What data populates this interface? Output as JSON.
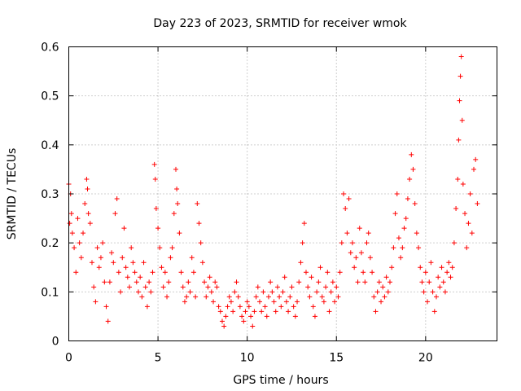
{
  "chart_data": {
    "type": "scatter",
    "title": "Day 223 of 2023, SRMTID for receiver wmok",
    "xlabel": "GPS time / hours",
    "ylabel": "SRMTID / TECUs",
    "xlim": [
      0,
      24
    ],
    "ylim": [
      0,
      0.6
    ],
    "xticks": [
      0,
      5,
      10,
      15,
      20
    ],
    "xtick_labels": [
      "0",
      "5",
      "10",
      "15",
      "20"
    ],
    "yticks": [
      0,
      0.1,
      0.2,
      0.3,
      0.4,
      0.5,
      0.6
    ],
    "ytick_labels": [
      "0",
      "0.1",
      "0.2",
      "0.3",
      "0.4",
      "0.5",
      "0.6"
    ],
    "grid": true,
    "marker": "+",
    "color": "#ff0000",
    "series": [
      {
        "name": "SRMTID",
        "points": [
          [
            0.0,
            0.32
          ],
          [
            0.05,
            0.24
          ],
          [
            0.1,
            0.3
          ],
          [
            0.15,
            0.26
          ],
          [
            0.2,
            0.22
          ],
          [
            0.3,
            0.19
          ],
          [
            0.4,
            0.14
          ],
          [
            0.5,
            0.25
          ],
          [
            0.6,
            0.2
          ],
          [
            0.7,
            0.17
          ],
          [
            0.8,
            0.22
          ],
          [
            0.9,
            0.28
          ],
          [
            1.0,
            0.33
          ],
          [
            1.05,
            0.31
          ],
          [
            1.1,
            0.26
          ],
          [
            1.2,
            0.24
          ],
          [
            1.3,
            0.16
          ],
          [
            1.4,
            0.11
          ],
          [
            1.5,
            0.08
          ],
          [
            1.6,
            0.19
          ],
          [
            1.7,
            0.15
          ],
          [
            1.8,
            0.17
          ],
          [
            1.9,
            0.2
          ],
          [
            2.0,
            0.12
          ],
          [
            2.1,
            0.07
          ],
          [
            2.2,
            0.04
          ],
          [
            2.3,
            0.12
          ],
          [
            2.4,
            0.18
          ],
          [
            2.5,
            0.16
          ],
          [
            2.6,
            0.26
          ],
          [
            2.7,
            0.29
          ],
          [
            2.8,
            0.14
          ],
          [
            2.9,
            0.1
          ],
          [
            3.0,
            0.17
          ],
          [
            3.1,
            0.23
          ],
          [
            3.2,
            0.15
          ],
          [
            3.3,
            0.13
          ],
          [
            3.4,
            0.11
          ],
          [
            3.5,
            0.19
          ],
          [
            3.6,
            0.16
          ],
          [
            3.7,
            0.14
          ],
          [
            3.8,
            0.12
          ],
          [
            3.9,
            0.1
          ],
          [
            4.0,
            0.13
          ],
          [
            4.1,
            0.09
          ],
          [
            4.2,
            0.16
          ],
          [
            4.3,
            0.11
          ],
          [
            4.4,
            0.07
          ],
          [
            4.5,
            0.12
          ],
          [
            4.6,
            0.1
          ],
          [
            4.7,
            0.14
          ],
          [
            4.8,
            0.36
          ],
          [
            4.85,
            0.33
          ],
          [
            4.9,
            0.27
          ],
          [
            5.0,
            0.23
          ],
          [
            5.1,
            0.19
          ],
          [
            5.2,
            0.15
          ],
          [
            5.3,
            0.11
          ],
          [
            5.4,
            0.14
          ],
          [
            5.5,
            0.09
          ],
          [
            5.6,
            0.12
          ],
          [
            5.7,
            0.17
          ],
          [
            5.8,
            0.19
          ],
          [
            5.9,
            0.26
          ],
          [
            6.0,
            0.35
          ],
          [
            6.05,
            0.31
          ],
          [
            6.1,
            0.28
          ],
          [
            6.2,
            0.22
          ],
          [
            6.3,
            0.14
          ],
          [
            6.4,
            0.11
          ],
          [
            6.5,
            0.08
          ],
          [
            6.6,
            0.09
          ],
          [
            6.7,
            0.12
          ],
          [
            6.8,
            0.1
          ],
          [
            6.9,
            0.17
          ],
          [
            7.0,
            0.14
          ],
          [
            7.1,
            0.09
          ],
          [
            7.2,
            0.28
          ],
          [
            7.3,
            0.24
          ],
          [
            7.4,
            0.2
          ],
          [
            7.5,
            0.16
          ],
          [
            7.6,
            0.12
          ],
          [
            7.7,
            0.09
          ],
          [
            7.8,
            0.11
          ],
          [
            7.9,
            0.13
          ],
          [
            8.0,
            0.1
          ],
          [
            8.1,
            0.08
          ],
          [
            8.2,
            0.12
          ],
          [
            8.3,
            0.11
          ],
          [
            8.4,
            0.07
          ],
          [
            8.5,
            0.06
          ],
          [
            8.6,
            0.04
          ],
          [
            8.7,
            0.03
          ],
          [
            8.8,
            0.05
          ],
          [
            8.9,
            0.07
          ],
          [
            9.0,
            0.09
          ],
          [
            9.1,
            0.08
          ],
          [
            9.2,
            0.06
          ],
          [
            9.3,
            0.1
          ],
          [
            9.4,
            0.12
          ],
          [
            9.5,
            0.09
          ],
          [
            9.6,
            0.07
          ],
          [
            9.7,
            0.05
          ],
          [
            9.8,
            0.04
          ],
          [
            9.9,
            0.06
          ],
          [
            10.0,
            0.08
          ],
          [
            10.1,
            0.07
          ],
          [
            10.2,
            0.05
          ],
          [
            10.3,
            0.03
          ],
          [
            10.4,
            0.06
          ],
          [
            10.5,
            0.09
          ],
          [
            10.6,
            0.11
          ],
          [
            10.7,
            0.08
          ],
          [
            10.8,
            0.06
          ],
          [
            10.9,
            0.1
          ],
          [
            11.0,
            0.07
          ],
          [
            11.1,
            0.05
          ],
          [
            11.2,
            0.09
          ],
          [
            11.3,
            0.12
          ],
          [
            11.4,
            0.1
          ],
          [
            11.5,
            0.08
          ],
          [
            11.6,
            0.06
          ],
          [
            11.7,
            0.11
          ],
          [
            11.8,
            0.09
          ],
          [
            11.9,
            0.07
          ],
          [
            12.0,
            0.1
          ],
          [
            12.1,
            0.13
          ],
          [
            12.2,
            0.08
          ],
          [
            12.3,
            0.06
          ],
          [
            12.4,
            0.09
          ],
          [
            12.5,
            0.11
          ],
          [
            12.6,
            0.07
          ],
          [
            12.7,
            0.05
          ],
          [
            12.8,
            0.08
          ],
          [
            12.9,
            0.12
          ],
          [
            13.0,
            0.16
          ],
          [
            13.1,
            0.2
          ],
          [
            13.2,
            0.24
          ],
          [
            13.3,
            0.14
          ],
          [
            13.4,
            0.11
          ],
          [
            13.5,
            0.09
          ],
          [
            13.6,
            0.13
          ],
          [
            13.7,
            0.07
          ],
          [
            13.8,
            0.05
          ],
          [
            13.9,
            0.1
          ],
          [
            14.0,
            0.12
          ],
          [
            14.1,
            0.15
          ],
          [
            14.2,
            0.09
          ],
          [
            14.3,
            0.08
          ],
          [
            14.4,
            0.11
          ],
          [
            14.5,
            0.14
          ],
          [
            14.6,
            0.06
          ],
          [
            14.7,
            0.1
          ],
          [
            14.8,
            0.12
          ],
          [
            14.9,
            0.08
          ],
          [
            15.0,
            0.11
          ],
          [
            15.1,
            0.09
          ],
          [
            15.2,
            0.14
          ],
          [
            15.3,
            0.2
          ],
          [
            15.4,
            0.3
          ],
          [
            15.5,
            0.27
          ],
          [
            15.6,
            0.22
          ],
          [
            15.7,
            0.29
          ],
          [
            15.8,
            0.18
          ],
          [
            15.9,
            0.2
          ],
          [
            16.0,
            0.15
          ],
          [
            16.1,
            0.17
          ],
          [
            16.2,
            0.12
          ],
          [
            16.3,
            0.23
          ],
          [
            16.4,
            0.18
          ],
          [
            16.5,
            0.14
          ],
          [
            16.6,
            0.12
          ],
          [
            16.7,
            0.2
          ],
          [
            16.8,
            0.22
          ],
          [
            16.9,
            0.17
          ],
          [
            17.0,
            0.14
          ],
          [
            17.1,
            0.09
          ],
          [
            17.2,
            0.06
          ],
          [
            17.3,
            0.1
          ],
          [
            17.4,
            0.12
          ],
          [
            17.5,
            0.08
          ],
          [
            17.6,
            0.11
          ],
          [
            17.7,
            0.09
          ],
          [
            17.8,
            0.13
          ],
          [
            17.9,
            0.1
          ],
          [
            18.0,
            0.12
          ],
          [
            18.1,
            0.15
          ],
          [
            18.2,
            0.19
          ],
          [
            18.3,
            0.26
          ],
          [
            18.4,
            0.3
          ],
          [
            18.5,
            0.21
          ],
          [
            18.6,
            0.17
          ],
          [
            18.7,
            0.19
          ],
          [
            18.8,
            0.23
          ],
          [
            18.9,
            0.25
          ],
          [
            19.0,
            0.29
          ],
          [
            19.1,
            0.33
          ],
          [
            19.2,
            0.38
          ],
          [
            19.3,
            0.35
          ],
          [
            19.4,
            0.28
          ],
          [
            19.5,
            0.22
          ],
          [
            19.6,
            0.19
          ],
          [
            19.7,
            0.15
          ],
          [
            19.8,
            0.12
          ],
          [
            19.9,
            0.1
          ],
          [
            20.0,
            0.14
          ],
          [
            20.1,
            0.08
          ],
          [
            20.2,
            0.12
          ],
          [
            20.3,
            0.16
          ],
          [
            20.4,
            0.1
          ],
          [
            20.5,
            0.06
          ],
          [
            20.6,
            0.09
          ],
          [
            20.7,
            0.13
          ],
          [
            20.8,
            0.11
          ],
          [
            20.9,
            0.15
          ],
          [
            21.0,
            0.12
          ],
          [
            21.1,
            0.1
          ],
          [
            21.2,
            0.14
          ],
          [
            21.3,
            0.16
          ],
          [
            21.4,
            0.13
          ],
          [
            21.5,
            0.15
          ],
          [
            21.6,
            0.2
          ],
          [
            21.7,
            0.27
          ],
          [
            21.8,
            0.33
          ],
          [
            21.85,
            0.41
          ],
          [
            21.9,
            0.49
          ],
          [
            21.95,
            0.54
          ],
          [
            22.0,
            0.58
          ],
          [
            22.05,
            0.45
          ],
          [
            22.1,
            0.32
          ],
          [
            22.2,
            0.26
          ],
          [
            22.3,
            0.19
          ],
          [
            22.4,
            0.24
          ],
          [
            22.5,
            0.3
          ],
          [
            22.6,
            0.22
          ],
          [
            22.7,
            0.35
          ],
          [
            22.8,
            0.37
          ],
          [
            22.9,
            0.28
          ]
        ]
      }
    ]
  }
}
